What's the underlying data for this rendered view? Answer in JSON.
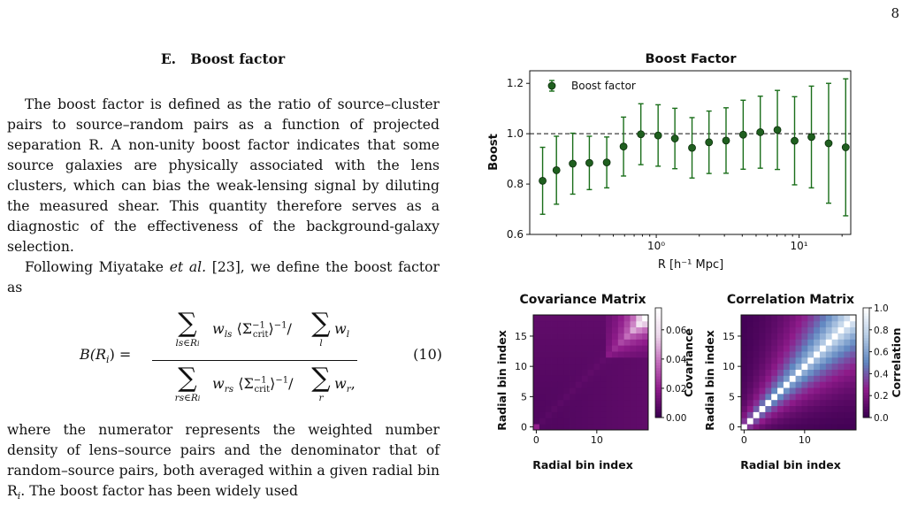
{
  "page_number": "8",
  "section": {
    "label": "E.",
    "title": "Boost factor"
  },
  "paragraph1": "The boost factor is defined as the ratio of source–cluster pairs to source–random pairs as a function of projected separation R. A non-unity boost factor indicates that some source galaxies are physically associated with the lens clusters, which can bias the weak-lensing signal by diluting the measured shear. This quantity therefore serves as a diagnostic of the effectiveness of the background-galaxy selection.",
  "paragraph2": {
    "before": "Following Miyatake ",
    "italic": "et al.",
    "after": " [23], we define the boost factor as"
  },
  "equation": {
    "lhs": "B(R",
    "lhs_sub": "i",
    "lhs_close": ") =",
    "num_sum_sub": "ls∈R",
    "num_sum_sub_i": "i",
    "num_weight": "w",
    "num_weight_sub": "ls",
    "sigma_term": "⟨Σ",
    "sigma_sup": "−1",
    "sigma_sub": "crit",
    "sigma_close": "⟩",
    "inv_sup": "−1",
    "divide": "/",
    "num_norm_sum_sub": "l",
    "num_norm": "w",
    "num_norm_sub": "l",
    "den_sum_sub": "rs∈R",
    "den_sum_sub_i": "i",
    "den_weight_sub": "rs",
    "den_norm_sum_sub": "r",
    "den_norm_sub": "r",
    "trailing": ",",
    "number": "(10)",
    "sum_symbol": "∑"
  },
  "paragraph3": "where the numerator represents the weighted number density of lens–source pairs and the denominator that of random–source pairs, both averaged within a given radial bin R",
  "paragraph3_sub": "i",
  "paragraph3_end": ". The boost factor has been widely used",
  "chart_data": [
    {
      "type": "scatter",
      "title": "Boost Factor",
      "xlabel": "R [h⁻¹ Mpc]",
      "ylabel": "Boost",
      "xscale": "log",
      "xlim": [
        0.13,
        23
      ],
      "ylim": [
        0.6,
        1.25
      ],
      "yticks": [
        "0.6",
        "0.8",
        "1.0",
        "1.2"
      ],
      "xticks": [
        {
          "value": 1,
          "label": "10⁰"
        },
        {
          "value": 10,
          "label": "10¹"
        }
      ],
      "reference_line": 1.0,
      "legend": {
        "label": "Boost factor",
        "position": "top-left"
      },
      "color": "#1a6e1a",
      "series": [
        {
          "name": "Boost factor",
          "x": [
            0.16,
            0.2,
            0.26,
            0.34,
            0.45,
            0.59,
            0.78,
            1.03,
            1.35,
            1.78,
            2.34,
            3.08,
            4.06,
            5.35,
            7.05,
            9.3,
            12.2,
            16.1,
            21.2
          ],
          "y": [
            0.813,
            0.855,
            0.881,
            0.884,
            0.886,
            0.949,
            0.998,
            0.993,
            0.981,
            0.944,
            0.966,
            0.973,
            0.996,
            1.006,
            1.015,
            0.972,
            0.987,
            0.962,
            0.946
          ],
          "err": [
            0.133,
            0.135,
            0.121,
            0.106,
            0.101,
            0.117,
            0.121,
            0.122,
            0.12,
            0.12,
            0.124,
            0.13,
            0.137,
            0.143,
            0.157,
            0.175,
            0.202,
            0.238,
            0.272
          ]
        }
      ]
    },
    {
      "type": "heatmap",
      "title": "Covariance Matrix",
      "xlabel": "Radial bin index",
      "ylabel": "Radial bin index",
      "size": 19,
      "ticks": [
        "0",
        "10"
      ],
      "yticks": [
        "0",
        "5",
        "10",
        "15"
      ],
      "colorbar_label": "Covariance",
      "colorbar_ticks": [
        "0.00",
        "0.02",
        "0.04",
        "0.06"
      ],
      "vmin": 0,
      "vmax": 0.075,
      "colormap": [
        "#3d0051",
        "#8e1b8a",
        "#c36cbb",
        "#ecd7ea",
        "#ffffff"
      ]
    },
    {
      "type": "heatmap",
      "title": "Correlation Matrix",
      "xlabel": "Radial bin index",
      "ylabel": "Radial bin index",
      "size": 19,
      "ticks": [
        "0",
        "10"
      ],
      "yticks": [
        "0",
        "5",
        "10",
        "15"
      ],
      "colorbar_label": "Correlation",
      "colorbar_ticks": [
        "0.0",
        "0.2",
        "0.4",
        "0.6",
        "0.8",
        "1.0"
      ],
      "vmin": 0,
      "vmax": 1,
      "colormap": [
        "#3d0051",
        "#8e1b8a",
        "#5f86c0",
        "#b7cde6",
        "#ffffff"
      ]
    }
  ]
}
